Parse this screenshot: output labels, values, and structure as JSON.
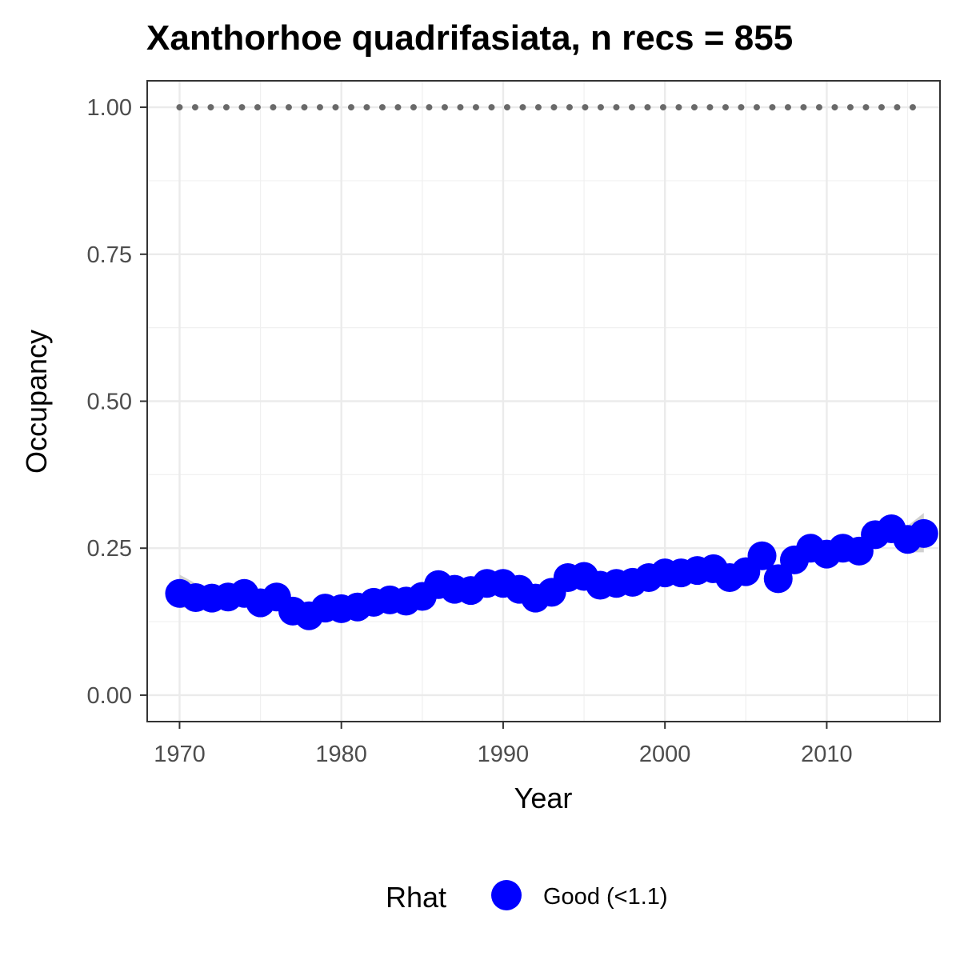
{
  "chart_data": {
    "type": "line",
    "title": "Xanthorhoe quadrifasiata, n recs = 855",
    "xlabel": "Year",
    "ylabel": "Occupancy",
    "xlim": [
      1968,
      2017
    ],
    "ylim": [
      -0.045,
      1.045
    ],
    "x_ticks": [
      1970,
      1980,
      1990,
      2000,
      2010
    ],
    "x_tick_labels": [
      "1970",
      "1980",
      "1990",
      "2000",
      "2010"
    ],
    "y_ticks": [
      0,
      0.25,
      0.5,
      0.75,
      1.0
    ],
    "y_tick_labels": [
      "0.00",
      "0.25",
      "0.50",
      "0.75",
      "1.00"
    ],
    "grid": true,
    "legend": {
      "position": "bottom",
      "title": "Rhat",
      "entries": [
        {
          "label": "Good (<1.1)",
          "color": "#0000ff"
        }
      ]
    },
    "x": [
      1970,
      1971,
      1972,
      1973,
      1974,
      1975,
      1976,
      1977,
      1978,
      1979,
      1980,
      1981,
      1982,
      1983,
      1984,
      1985,
      1986,
      1987,
      1988,
      1989,
      1990,
      1991,
      1992,
      1993,
      1994,
      1995,
      1996,
      1997,
      1998,
      1999,
      2000,
      2001,
      2002,
      2003,
      2004,
      2005,
      2006,
      2007,
      2008,
      2009,
      2010,
      2011,
      2012,
      2013,
      2014,
      2015,
      2016
    ],
    "series": [
      {
        "name": "Good (<1.1)",
        "color": "#0000ff",
        "values": [
          0.173,
          0.166,
          0.165,
          0.167,
          0.173,
          0.157,
          0.167,
          0.143,
          0.135,
          0.148,
          0.147,
          0.15,
          0.158,
          0.162,
          0.16,
          0.168,
          0.188,
          0.18,
          0.178,
          0.19,
          0.19,
          0.18,
          0.165,
          0.175,
          0.2,
          0.202,
          0.187,
          0.19,
          0.192,
          0.2,
          0.208,
          0.208,
          0.212,
          0.215,
          0.2,
          0.21,
          0.237,
          0.198,
          0.23,
          0.25,
          0.24,
          0.25,
          0.245,
          0.273,
          0.283,
          0.265,
          0.275
        ]
      }
    ],
    "ribbon": {
      "color": "#c8c8c8",
      "lower": [
        0.148,
        0.15,
        0.152,
        0.154,
        0.158,
        0.142,
        0.15,
        0.128,
        0.122,
        0.134,
        0.134,
        0.137,
        0.145,
        0.15,
        0.148,
        0.156,
        0.174,
        0.167,
        0.166,
        0.177,
        0.178,
        0.168,
        0.153,
        0.163,
        0.187,
        0.19,
        0.175,
        0.178,
        0.18,
        0.188,
        0.196,
        0.196,
        0.2,
        0.202,
        0.187,
        0.196,
        0.222,
        0.183,
        0.215,
        0.235,
        0.225,
        0.234,
        0.228,
        0.255,
        0.263,
        0.243,
        0.243
      ],
      "upper": [
        0.205,
        0.19,
        0.182,
        0.182,
        0.19,
        0.173,
        0.184,
        0.158,
        0.15,
        0.162,
        0.16,
        0.163,
        0.171,
        0.175,
        0.173,
        0.181,
        0.202,
        0.194,
        0.191,
        0.203,
        0.203,
        0.193,
        0.178,
        0.188,
        0.214,
        0.215,
        0.2,
        0.203,
        0.205,
        0.213,
        0.221,
        0.221,
        0.225,
        0.229,
        0.214,
        0.225,
        0.252,
        0.214,
        0.246,
        0.266,
        0.256,
        0.267,
        0.263,
        0.292,
        0.304,
        0.288,
        0.31
      ]
    },
    "reference_line": {
      "y": 1.0,
      "style": "dotted",
      "color": "#696969"
    }
  }
}
